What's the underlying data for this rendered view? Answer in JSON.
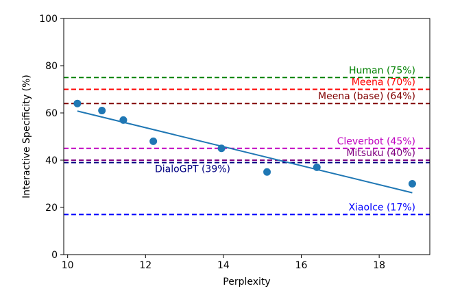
{
  "chart_data": {
    "type": "scatter",
    "title": "",
    "xlabel": "Perplexity",
    "ylabel": "Interactive Specificity (%)",
    "xlim": [
      9.9,
      19.3
    ],
    "ylim": [
      0,
      100
    ],
    "xticks": [
      10,
      12,
      14,
      16,
      18
    ],
    "yticks": [
      0,
      20,
      40,
      60,
      80,
      100
    ],
    "grid": false,
    "point_color": "#1f77b4",
    "points": [
      {
        "x": 10.25,
        "y": 64
      },
      {
        "x": 10.88,
        "y": 61
      },
      {
        "x": 11.43,
        "y": 57
      },
      {
        "x": 12.2,
        "y": 48
      },
      {
        "x": 13.95,
        "y": 45
      },
      {
        "x": 15.12,
        "y": 35
      },
      {
        "x": 16.4,
        "y": 37
      },
      {
        "x": 18.85,
        "y": 30
      }
    ],
    "fit_line": {
      "color": "#1f77b4",
      "start": {
        "x": 10.25,
        "y": 60.8
      },
      "end": {
        "x": 18.85,
        "y": 26.2
      }
    },
    "reference_lines": [
      {
        "label": "Human (75%)",
        "y": 75,
        "color": "#008000"
      },
      {
        "label": "Meena (70%)",
        "y": 70,
        "color": "#ff0000"
      },
      {
        "label": "Meena (base) (64%)",
        "y": 64,
        "color": "#800000"
      },
      {
        "label": "Cleverbot (45%)",
        "y": 45,
        "color": "#c000c0"
      },
      {
        "label": "Mitsuku (40%)",
        "y": 40,
        "color": "#800080"
      },
      {
        "label": "DialoGPT (39%)",
        "y": 39,
        "color": "#000080"
      },
      {
        "label": "XiaoIce (17%)",
        "y": 17,
        "color": "#0000ff"
      }
    ]
  }
}
